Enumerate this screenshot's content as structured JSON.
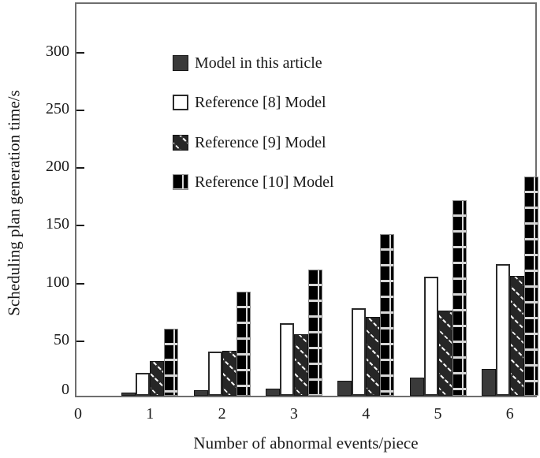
{
  "figure_title": "",
  "colors": {
    "axis_border": "#6e6e6e",
    "tick": "#1a1a1a",
    "text": "#1a1a1a",
    "series0_fill": "#3a3a3a",
    "series1_fill": "#ffffff",
    "series2_fill": "#262626",
    "series3_fill": "#000000",
    "hatch_line": "#ffffff",
    "grid_stripe": "#d8d8d8"
  },
  "chart_data": {
    "type": "bar",
    "title": "",
    "xlabel": "Number of abnormal events/piece",
    "ylabel": "Scheduling plan generation time/s",
    "x_ticks": [
      0,
      1,
      2,
      3,
      4,
      5,
      6
    ],
    "y_ticks": [
      0,
      50,
      100,
      150,
      200,
      250,
      300
    ],
    "ylim": [
      0,
      340
    ],
    "xlim": [
      0,
      6.4
    ],
    "grid": false,
    "legend_position": "upper-left-inside",
    "categories": [
      1,
      2,
      3,
      4,
      5,
      6
    ],
    "series": [
      {
        "name": "Model in this article",
        "pattern": "solid-dark-gray",
        "values": [
          3,
          5,
          6,
          13,
          16,
          23
        ]
      },
      {
        "name": "Reference [8] Model",
        "pattern": "white-outline",
        "values": [
          20,
          38,
          63,
          76,
          103,
          114
        ]
      },
      {
        "name": "Reference [9] Model",
        "pattern": "diagonal-white-hatch-on-dark",
        "values": [
          30,
          39,
          53,
          68,
          74,
          104
        ]
      },
      {
        "name": "Reference [10] Model",
        "pattern": "black-with-white-grid",
        "values": [
          58,
          90,
          109,
          140,
          169,
          190
        ]
      }
    ]
  }
}
